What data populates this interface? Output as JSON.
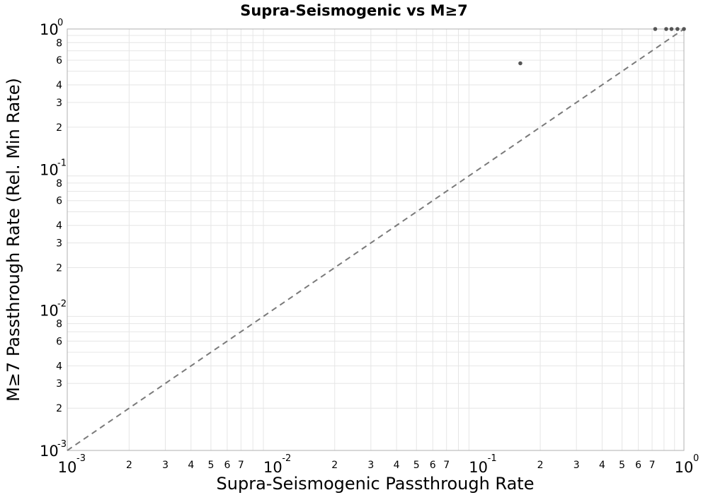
{
  "chart_data": {
    "type": "scatter",
    "title": "Supra-Seismogenic vs M≥7",
    "xlabel": "Supra-Seismogenic Passthrough Rate",
    "ylabel": "M≥7 Passthrough Rate (Rel. Min Rate)",
    "x_scale": "log",
    "y_scale": "log",
    "xlim": [
      0.001,
      1
    ],
    "ylim": [
      0.001,
      1
    ],
    "grid": true,
    "x_major_ticks": [
      {
        "value": 0.001,
        "base": "10",
        "exp": "-3"
      },
      {
        "value": 0.01,
        "base": "10",
        "exp": "-2"
      },
      {
        "value": 0.1,
        "base": "10",
        "exp": "-1"
      },
      {
        "value": 1,
        "base": "10",
        "exp": "0"
      }
    ],
    "y_major_ticks": [
      {
        "value": 0.001,
        "base": "10",
        "exp": "-3"
      },
      {
        "value": 0.01,
        "base": "10",
        "exp": "-2"
      },
      {
        "value": 0.1,
        "base": "10",
        "exp": "-1"
      },
      {
        "value": 1,
        "base": "10",
        "exp": "0"
      }
    ],
    "x_minor_tick_labels": [
      "2",
      "3",
      "4",
      "5",
      "6",
      "7"
    ],
    "y_minor_tick_labels": [
      "2",
      "3",
      "4",
      "6",
      "8"
    ],
    "reference_line": {
      "style": "dashed",
      "from": [
        0.001,
        0.001
      ],
      "to": [
        1,
        1
      ]
    },
    "points": [
      {
        "x": 0.16,
        "y": 0.57
      },
      {
        "x": 0.725,
        "y": 1.0
      },
      {
        "x": 0.82,
        "y": 1.0
      },
      {
        "x": 0.87,
        "y": 1.0
      },
      {
        "x": 0.93,
        "y": 1.0
      },
      {
        "x": 1.0,
        "y": 1.0
      }
    ],
    "colors": {
      "points": "#555555",
      "reference_line": "#7a7a7a",
      "grid": "#e6e6e6"
    }
  }
}
